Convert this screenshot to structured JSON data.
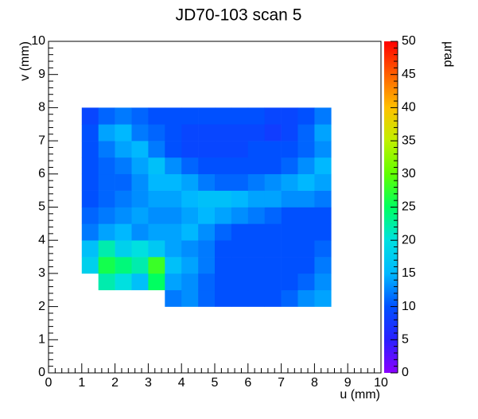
{
  "chart_data": {
    "type": "heatmap",
    "title": "JD70-103 scan 5",
    "x_label": "u (mm)",
    "y_label": "v (mm)",
    "z_label": "µrad",
    "x": [
      1.25,
      1.75,
      2.25,
      2.75,
      3.25,
      3.75,
      4.25,
      4.75,
      5.25,
      5.75,
      6.25,
      6.75,
      7.25,
      7.75,
      8.25,
      8.75
    ],
    "y": [
      2.25,
      2.75,
      3.25,
      3.75,
      4.25,
      4.75,
      5.25,
      5.75,
      6.25,
      6.75,
      7.25,
      7.75
    ],
    "values": [
      [
        null,
        null,
        null,
        null,
        null,
        12,
        13,
        11,
        10,
        10,
        10,
        10,
        11,
        13,
        14,
        null
      ],
      [
        null,
        22,
        20,
        16,
        25,
        14,
        13,
        11,
        10,
        10,
        10,
        10,
        10,
        11,
        13,
        null
      ],
      [
        18,
        26,
        24,
        22,
        28,
        16,
        14,
        12,
        10,
        10,
        10,
        10,
        10,
        10,
        12,
        null
      ],
      [
        16,
        22,
        18,
        20,
        17,
        14,
        13,
        12,
        10,
        10,
        10,
        10,
        10,
        10,
        11,
        null
      ],
      [
        12,
        14,
        15,
        13,
        14,
        14,
        15,
        13,
        11,
        10,
        10,
        10,
        10,
        10,
        10,
        null
      ],
      [
        11,
        12,
        13,
        14,
        13,
        13,
        14,
        15,
        14,
        13,
        12,
        11,
        10,
        10,
        10,
        null
      ],
      [
        10,
        11,
        12,
        13,
        14,
        14,
        15,
        16,
        16,
        15,
        14,
        14,
        13,
        13,
        12,
        null
      ],
      [
        10,
        11,
        11,
        13,
        15,
        15,
        14,
        12,
        11,
        11,
        12,
        13,
        14,
        15,
        14,
        null
      ],
      [
        10,
        11,
        12,
        14,
        16,
        13,
        11,
        10,
        10,
        10,
        10,
        10,
        11,
        13,
        15,
        null
      ],
      [
        10,
        12,
        14,
        15,
        12,
        10,
        9,
        9,
        9,
        9,
        10,
        10,
        10,
        11,
        13,
        null
      ],
      [
        10,
        14,
        15,
        12,
        11,
        10,
        9,
        9,
        9,
        9,
        9,
        8,
        9,
        11,
        14,
        null
      ],
      [
        9,
        11,
        12,
        11,
        10,
        10,
        10,
        10,
        10,
        10,
        10,
        9,
        9,
        10,
        12,
        null
      ]
    ],
    "xlim": [
      0,
      10
    ],
    "ylim": [
      0,
      10
    ],
    "zlim": [
      0,
      50
    ],
    "xticks": [
      0,
      1,
      2,
      3,
      4,
      5,
      6,
      7,
      8,
      9,
      10
    ],
    "yticks": [
      0,
      1,
      2,
      3,
      4,
      5,
      6,
      7,
      8,
      9,
      10
    ],
    "zticks": [
      0,
      5,
      10,
      15,
      20,
      25,
      30,
      35,
      40,
      45,
      50
    ],
    "colorscale": [
      "#8a00ff",
      "#2a20ff",
      "#0050ff",
      "#00b8ff",
      "#00e0e0",
      "#00ff60",
      "#60ff00",
      "#c0f000",
      "#ffc000",
      "#ff6000",
      "#ff0000"
    ]
  }
}
